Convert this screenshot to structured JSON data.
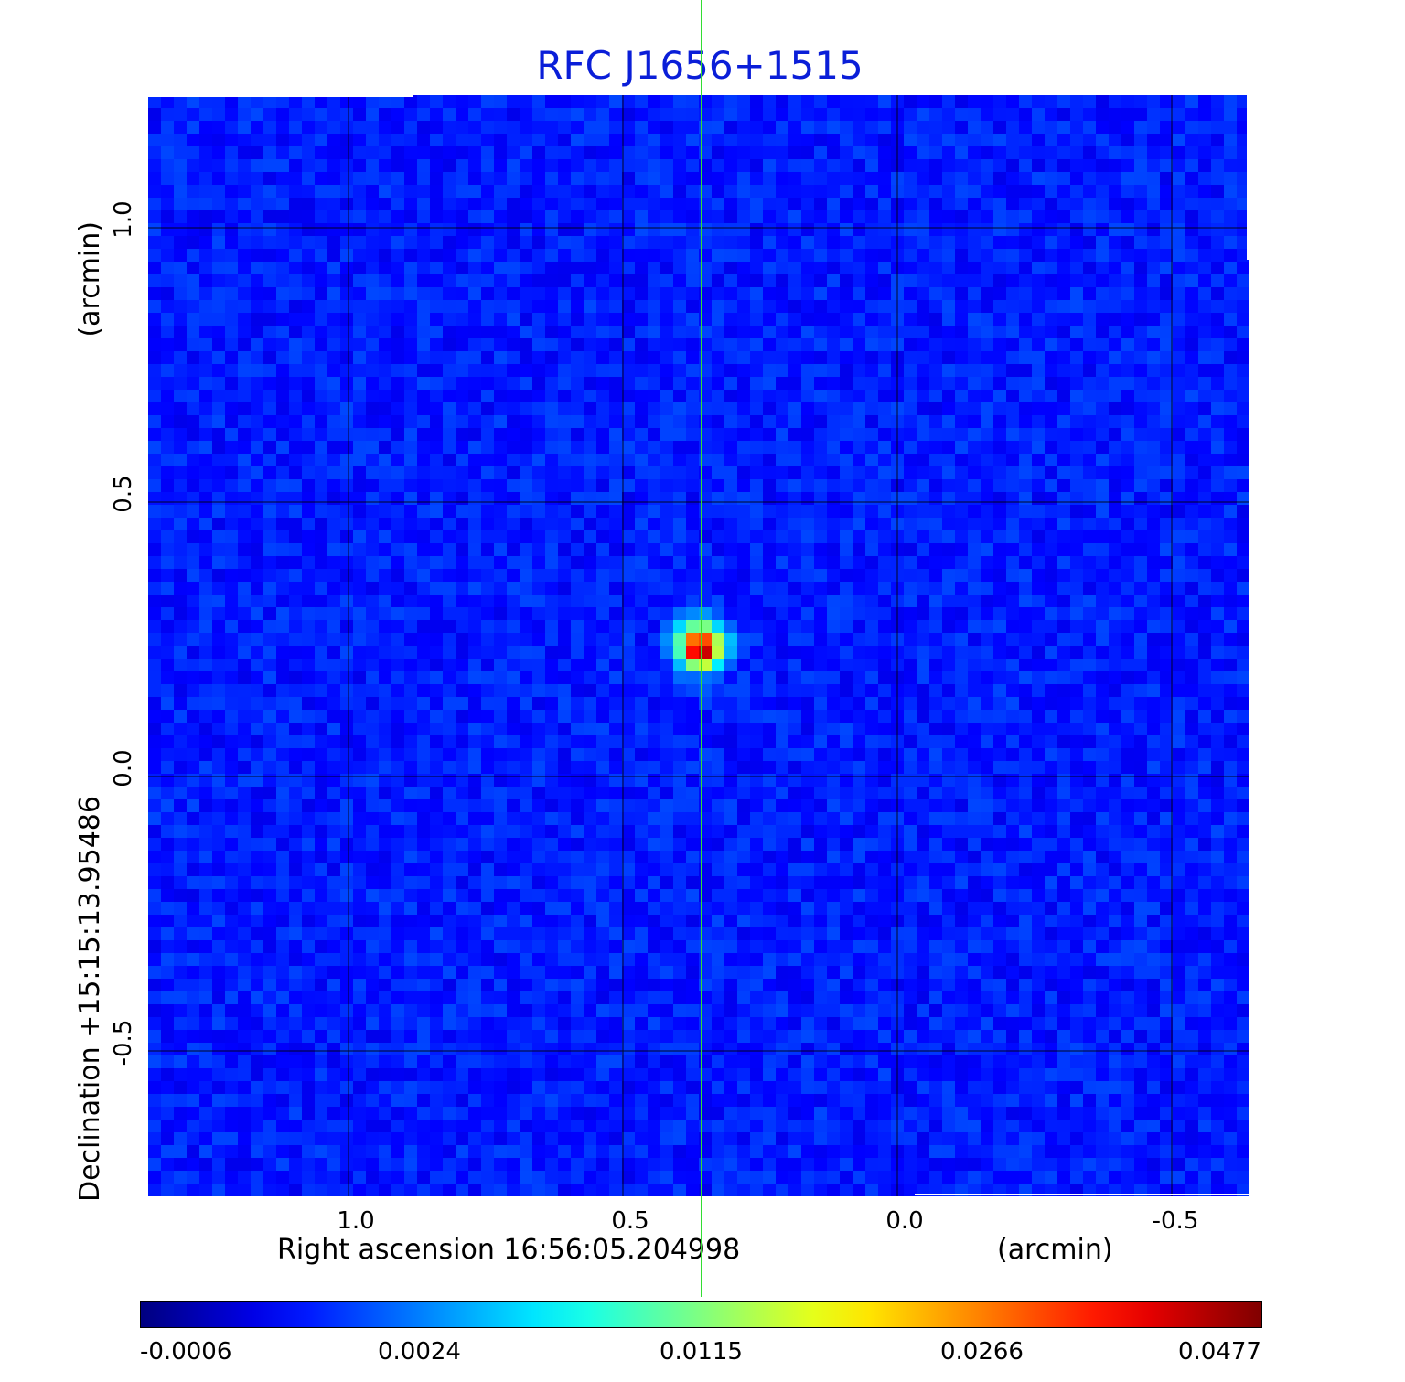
{
  "title": "RFC J1656+1515",
  "axes": {
    "x_label": "Right ascension  16:56:05.204998",
    "x_unit": "(arcmin)",
    "y_label": "Declination  +15:15:13.95486",
    "y_unit": "(arcmin)",
    "x_ticks": [
      "1.0",
      "0.5",
      "0.0",
      "-0.5"
    ],
    "y_ticks": [
      "1.0",
      "0.5",
      "0.0",
      "-0.5"
    ]
  },
  "colorbar": {
    "ticks": [
      "-0.0006",
      "0.0024",
      "0.0115",
      "0.0266",
      "0.0477"
    ],
    "colormap": "jet"
  },
  "colors": {
    "title": "#0a1ed8",
    "background_map": "#1640f0",
    "crosshair": "#33dd33",
    "grid": "#000000"
  }
}
